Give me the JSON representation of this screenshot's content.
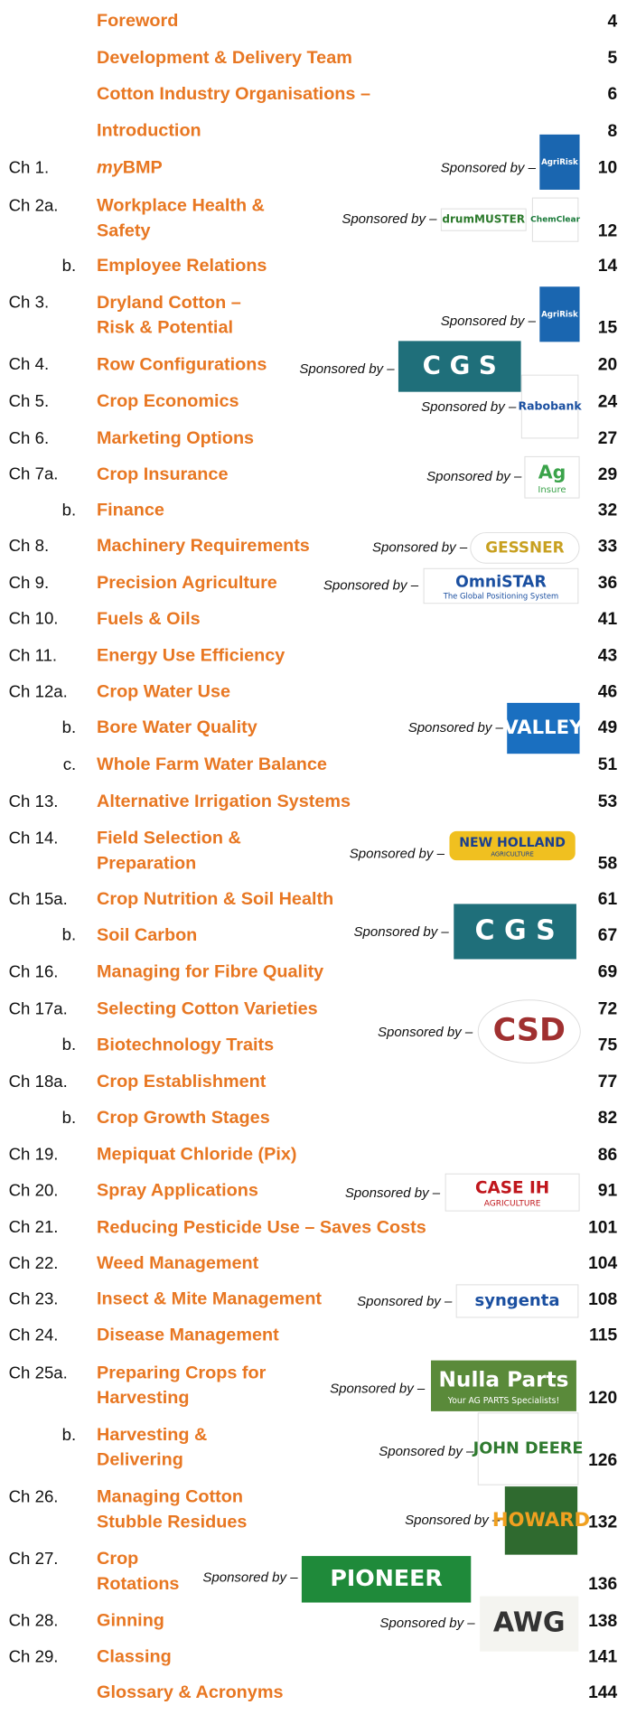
{
  "entries": [
    {
      "title": [
        "Foreword"
      ],
      "page": 4
    },
    {
      "title": [
        "Development & Delivery Team"
      ],
      "page": 5
    },
    {
      "title": [
        "Cotton Industry Organisations –"
      ],
      "page": 6
    },
    {
      "title": [
        "Introduction"
      ],
      "page": 8
    },
    {
      "chapter": "Ch 1.",
      "title_em": "my",
      "title": [
        "BMP"
      ],
      "page": 10,
      "sponsor": {
        "text": "Sponsored by –",
        "logos": [
          [
            "AgriRisk"
          ]
        ]
      }
    },
    {
      "chapter": "Ch 2a.",
      "title": [
        "Workplace Health &",
        "Safety"
      ],
      "page": 12,
      "sponsor": {
        "text": "Sponsored by –",
        "logos": [
          [
            "drumMUSTER"
          ],
          [
            "ChemClear"
          ]
        ]
      }
    },
    {
      "chapter": "b.",
      "title": [
        "Employee Relations"
      ],
      "page": 14
    },
    {
      "chapter": "Ch 3.",
      "title": [
        "Dryland Cotton –",
        "Risk & Potential"
      ],
      "page": 15,
      "sponsor": {
        "text": "Sponsored by –",
        "logos": [
          [
            "AgriRisk"
          ]
        ]
      }
    },
    {
      "chapter": "Ch 4.",
      "title": [
        "Row Configurations"
      ],
      "page": 20,
      "sponsor": {
        "text": "Sponsored by –",
        "logos": [
          [
            "C G S"
          ]
        ]
      }
    },
    {
      "chapter": "Ch 5.",
      "title": [
        "Crop Economics"
      ],
      "page": 24,
      "sponsor": {
        "text": "Sponsored by –",
        "logos": [
          [
            "Rabobank"
          ]
        ]
      }
    },
    {
      "chapter": "Ch 6.",
      "title": [
        "Marketing Options"
      ],
      "page": 27
    },
    {
      "chapter": "Ch 7a.",
      "title": [
        "Crop Insurance"
      ],
      "page": 29,
      "sponsor": {
        "text": "Sponsored by –",
        "logos": [
          [
            "Ag",
            "Insure"
          ]
        ]
      }
    },
    {
      "chapter": "b.",
      "title": [
        "Finance"
      ],
      "page": 32
    },
    {
      "chapter": "Ch 8.",
      "title": [
        "Machinery Requirements"
      ],
      "page": 33,
      "sponsor": {
        "text": "Sponsored by –",
        "logos": [
          [
            "GESSNER"
          ]
        ]
      }
    },
    {
      "chapter": "Ch 9.",
      "title": [
        "Precision Agriculture"
      ],
      "page": 36,
      "sponsor": {
        "text": "Sponsored by –",
        "logos": [
          [
            "OmniSTAR",
            "The Global Positioning System"
          ]
        ]
      }
    },
    {
      "chapter": "Ch 10.",
      "title": [
        "Fuels & Oils"
      ],
      "page": 41
    },
    {
      "chapter": "Ch 11.",
      "title": [
        "Energy Use Efficiency"
      ],
      "page": 43
    },
    {
      "chapter": "Ch 12a.",
      "title": [
        "Crop Water Use"
      ],
      "page": 46
    },
    {
      "chapter": "b.",
      "title": [
        "Bore Water Quality"
      ],
      "page": 49,
      "sponsor": {
        "text": "Sponsored by –",
        "logos": [
          [
            "VALLEY"
          ]
        ]
      }
    },
    {
      "chapter": "c.",
      "title": [
        "Whole Farm Water Balance"
      ],
      "page": 51
    },
    {
      "chapter": "Ch 13.",
      "title": [
        "Alternative Irrigation Systems"
      ],
      "page": 53
    },
    {
      "chapter": "Ch 14.",
      "title": [
        "Field Selection &",
        "Preparation"
      ],
      "page": 58,
      "sponsor": {
        "text": "Sponsored by –",
        "logos": [
          [
            "NEW HOLLAND",
            "AGRICULTURE"
          ]
        ]
      }
    },
    {
      "chapter": "Ch 15a.",
      "title": [
        "Crop Nutrition & Soil Health"
      ],
      "page": 61
    },
    {
      "chapter": "b.",
      "title": [
        "Soil Carbon"
      ],
      "page": 67,
      "sponsor": {
        "text": "Sponsored by –",
        "logos": [
          [
            "C G S"
          ]
        ]
      }
    },
    {
      "chapter": "Ch 16.",
      "title": [
        "Managing for Fibre Quality"
      ],
      "page": 69
    },
    {
      "chapter": "Ch 17a.",
      "title": [
        "Selecting Cotton Varieties"
      ],
      "page": 72
    },
    {
      "chapter": "b.",
      "title": [
        "Biotechnology Traits"
      ],
      "page": 75,
      "sponsor": {
        "text": "Sponsored by –",
        "logos": [
          [
            "CSD"
          ]
        ]
      }
    },
    {
      "chapter": "Ch 18a.",
      "title": [
        "Crop Establishment"
      ],
      "page": 77
    },
    {
      "chapter": "b.",
      "title": [
        "Crop Growth Stages"
      ],
      "page": 82
    },
    {
      "chapter": "Ch 19.",
      "title": [
        "Mepiquat Chloride (Pix)"
      ],
      "page": 86
    },
    {
      "chapter": "Ch 20.",
      "title": [
        "Spray Applications"
      ],
      "page": 91,
      "sponsor": {
        "text": "Sponsored by –",
        "logos": [
          [
            "CASE IH",
            "AGRICULTURE"
          ]
        ]
      }
    },
    {
      "chapter": "Ch 21.",
      "title": [
        "Reducing Pesticide Use – Saves Costs"
      ],
      "page": 101
    },
    {
      "chapter": "Ch 22.",
      "title": [
        "Weed Management"
      ],
      "page": 104
    },
    {
      "chapter": "Ch 23.",
      "title": [
        "Insect & Mite Management"
      ],
      "page": 108,
      "sponsor": {
        "text": "Sponsored by –",
        "logos": [
          [
            "syngenta"
          ]
        ]
      }
    },
    {
      "chapter": "Ch 24.",
      "title": [
        "Disease Management"
      ],
      "page": 115
    },
    {
      "chapter": "Ch 25a.",
      "title": [
        "Preparing Crops for",
        "Harvesting"
      ],
      "page": 120,
      "sponsor": {
        "text": "Sponsored by –",
        "logos": [
          [
            "Nulla Parts",
            "Your AG PARTS Specialists!"
          ]
        ]
      }
    },
    {
      "chapter": "b.",
      "title": [
        "Harvesting &",
        "Delivering"
      ],
      "page": 126,
      "sponsor": {
        "text": "Sponsored by –",
        "logos": [
          [
            "JOHN DEERE"
          ]
        ]
      }
    },
    {
      "chapter": "Ch 26.",
      "title": [
        "Managing Cotton",
        "Stubble Residues"
      ],
      "page": 132,
      "sponsor": {
        "text": "Sponsored by –",
        "logos": [
          [
            "HOWARD"
          ]
        ]
      }
    },
    {
      "chapter": "Ch 27.",
      "title": [
        "Crop",
        "Rotations"
      ],
      "page": 136,
      "sponsor": {
        "text": "Sponsored by –",
        "logos": [
          [
            "PIONEER"
          ]
        ]
      }
    },
    {
      "chapter": "Ch 28.",
      "title": [
        "Ginning"
      ],
      "page": 138,
      "sponsor": {
        "text": "Sponsored by –",
        "logos": [
          [
            "AWG"
          ]
        ]
      }
    },
    {
      "chapter": "Ch 29.",
      "title": [
        "Classing"
      ],
      "page": 141
    },
    {
      "title": [
        "Glossary & Acronyms"
      ],
      "page": 144
    }
  ]
}
